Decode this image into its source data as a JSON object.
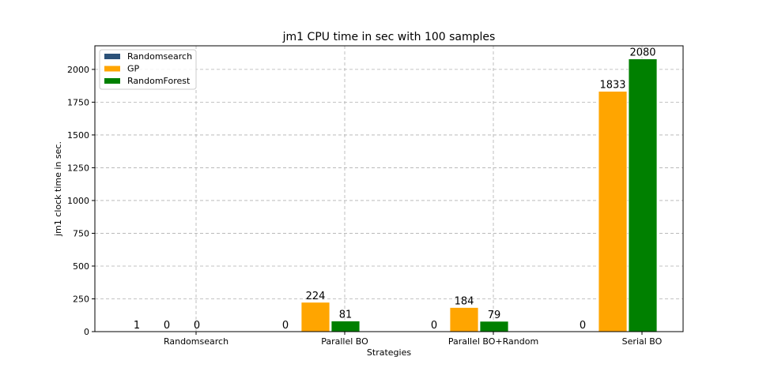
{
  "chart_data": {
    "type": "bar",
    "title": "jm1 CPU time in sec with 100 samples",
    "xlabel": "Strategies",
    "ylabel": "jm1 clock time in sec.",
    "ylim": [
      0,
      2180
    ],
    "yticks": [
      0,
      250,
      500,
      750,
      1000,
      1250,
      1500,
      1750,
      2000
    ],
    "grid": true,
    "legend_position": "top-left",
    "categories": [
      "Randomsearch",
      "Parallel BO",
      "Parallel BO+Random",
      "Serial BO"
    ],
    "series": [
      {
        "name": "Randomsearch",
        "color": "#2c5279",
        "values": [
          1,
          0,
          0,
          0
        ],
        "labels": [
          "1",
          "0",
          "0",
          "0"
        ]
      },
      {
        "name": "GP",
        "color": "#ffa500",
        "values": [
          0,
          224,
          184,
          1833
        ],
        "labels": [
          "0",
          "224",
          "184",
          "1833"
        ]
      },
      {
        "name": "RandomForest",
        "color": "#008000",
        "values": [
          0,
          81,
          79,
          2080
        ],
        "labels": [
          "0",
          "81",
          "79",
          "2080"
        ]
      }
    ]
  }
}
